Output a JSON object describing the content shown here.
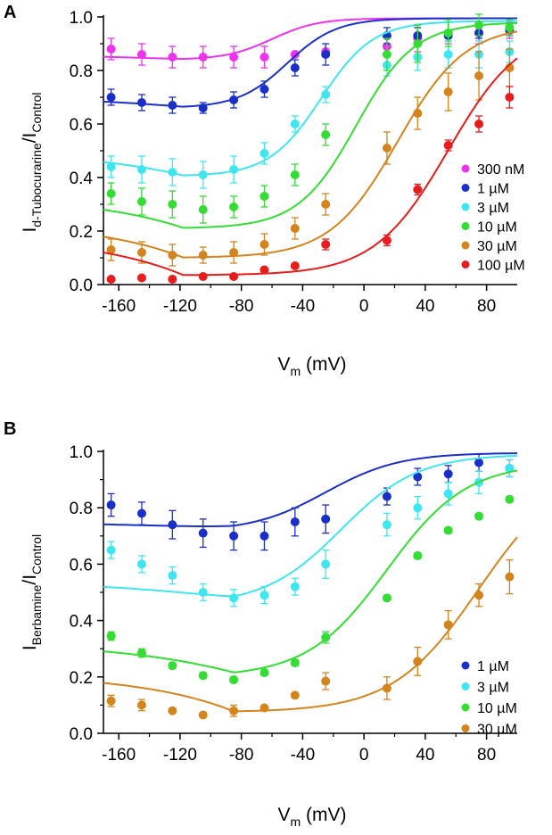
{
  "colors": {
    "300 nM": "#ee33ee",
    "1 µM": "#1a2fc8",
    "3 µM": "#3fe6f0",
    "10 µM": "#33dd33",
    "30 µM": "#d4841c",
    "100 µM": "#e81c1c"
  },
  "chart_data": [
    {
      "type": "scatter",
      "panel": "A",
      "ylabel_main": "I",
      "ylabel_sub1": "d-Tubocurarine",
      "ylabel_mid": "/I",
      "ylabel_sub2": "Control",
      "xlabel_main": "V",
      "xlabel_sub": "m",
      "xlabel_unit": " (mV)",
      "xlim": [
        -170,
        100
      ],
      "ylim": [
        0,
        1
      ],
      "xticks": [
        -160,
        -120,
        -80,
        -40,
        0,
        40,
        80
      ],
      "xtick_labels": [
        "-160",
        "-120",
        "-80",
        "-40",
        "0",
        "40",
        "80"
      ],
      "yticks": [
        0,
        0.2,
        0.4,
        0.6,
        0.8,
        1.0
      ],
      "ytick_labels": [
        "0.0",
        "0.2",
        "0.4",
        "0.6",
        "0.8",
        "1.0"
      ],
      "legend_position": "bottom-right",
      "series": [
        {
          "name": "300 nM",
          "color_key": "300 nM",
          "x": [
            -165,
            -145,
            -125,
            -105,
            -85,
            -65,
            -45,
            -25,
            15,
            35,
            55,
            75,
            95
          ],
          "y": [
            0.88,
            0.86,
            0.85,
            0.85,
            0.85,
            0.85,
            0.86,
            0.87,
            0.89,
            0.92,
            0.94,
            0.94,
            0.95
          ],
          "err": [
            0.04,
            0.04,
            0.04,
            0.04,
            0.04,
            0.04,
            0.0,
            0.0,
            0.0,
            0.05,
            0.04,
            0.04,
            0.03
          ],
          "fit": {
            "min": 0.84,
            "max": 0.995,
            "v_center": -118,
            "width": 55,
            "v_half": -60,
            "slope": 15
          }
        },
        {
          "name": "1 µM",
          "color_key": "1 µM",
          "x": [
            -165,
            -145,
            -125,
            -105,
            -85,
            -65,
            -45,
            -25,
            15,
            35,
            55,
            75,
            95
          ],
          "y": [
            0.7,
            0.68,
            0.67,
            0.66,
            0.69,
            0.73,
            0.81,
            0.86,
            0.93,
            0.93,
            0.93,
            0.94,
            0.95
          ],
          "err": [
            0.03,
            0.03,
            0.03,
            0.02,
            0.03,
            0.03,
            0.03,
            0.04,
            0.03,
            0.03,
            0.02,
            0.02,
            0.02
          ],
          "fit": {
            "min": 0.66,
            "max": 0.995,
            "v_center": -118,
            "width": 55,
            "v_half": -50,
            "slope": 16
          }
        },
        {
          "name": "3 µM",
          "color_key": "3 µM",
          "x": [
            -165,
            -145,
            -125,
            -105,
            -85,
            -65,
            -45,
            -25,
            15,
            35,
            55,
            75,
            95
          ],
          "y": [
            0.44,
            0.43,
            0.42,
            0.41,
            0.43,
            0.49,
            0.6,
            0.71,
            0.82,
            0.85,
            0.86,
            0.86,
            0.87
          ],
          "err": [
            0.04,
            0.05,
            0.05,
            0.05,
            0.05,
            0.04,
            0.03,
            0.03,
            0.04,
            0.05,
            0.05,
            0.05,
            0.04
          ],
          "fit": {
            "min": 0.405,
            "max": 0.985,
            "v_center": -118,
            "width": 55,
            "v_half": -28,
            "slope": 17
          }
        },
        {
          "name": "10 µM",
          "color_key": "10 µM",
          "x": [
            -165,
            -145,
            -125,
            -105,
            -85,
            -65,
            -45,
            -25,
            15,
            35,
            55,
            75,
            95
          ],
          "y": [
            0.34,
            0.31,
            0.3,
            0.28,
            0.29,
            0.33,
            0.41,
            0.56,
            0.86,
            0.9,
            0.94,
            0.97,
            0.96
          ],
          "err": [
            0.04,
            0.05,
            0.05,
            0.05,
            0.04,
            0.04,
            0.04,
            0.04,
            0.06,
            0.07,
            0.05,
            0.04,
            0.03
          ],
          "fit": {
            "min": 0.21,
            "max": 0.98,
            "v_center": -118,
            "width": 55,
            "v_half": -5,
            "slope": 19
          }
        },
        {
          "name": "30 µM",
          "color_key": "30 µM",
          "x": [
            -165,
            -145,
            -125,
            -105,
            -85,
            -65,
            -45,
            -25,
            15,
            35,
            55,
            75,
            95
          ],
          "y": [
            0.13,
            0.12,
            0.11,
            0.11,
            0.12,
            0.15,
            0.21,
            0.3,
            0.51,
            0.64,
            0.72,
            0.78,
            0.81
          ],
          "err": [
            0.04,
            0.04,
            0.04,
            0.03,
            0.04,
            0.04,
            0.04,
            0.04,
            0.06,
            0.06,
            0.07,
            0.09,
            0.07
          ],
          "fit": {
            "min": 0.1,
            "max": 0.97,
            "v_center": -118,
            "width": 55,
            "v_half": 22,
            "slope": 22
          }
        },
        {
          "name": "100 µM",
          "color_key": "100 µM",
          "x": [
            -165,
            -145,
            -125,
            -105,
            -85,
            -65,
            -45,
            -25,
            15,
            35,
            55,
            75,
            95
          ],
          "y": [
            0.02,
            0.025,
            0.02,
            0.03,
            0.03,
            0.055,
            0.07,
            0.15,
            0.165,
            0.355,
            0.52,
            0.6,
            0.7
          ],
          "err": [
            0.0,
            0.0,
            0.0,
            0.0,
            0.0,
            0.0,
            0.0,
            0.02,
            0.02,
            0.02,
            0.02,
            0.03,
            0.04
          ],
          "fit": {
            "min": 0.035,
            "max": 0.97,
            "v_center": -118,
            "width": 55,
            "v_half": 55,
            "slope": 24
          }
        }
      ]
    },
    {
      "type": "scatter",
      "panel": "B",
      "ylabel_main": "I",
      "ylabel_sub1": "Berbamine",
      "ylabel_mid": "/I",
      "ylabel_sub2": "Control",
      "xlabel_main": "V",
      "xlabel_sub": "m",
      "xlabel_unit": " (mV)",
      "xlim": [
        -170,
        100
      ],
      "ylim": [
        0,
        1
      ],
      "xticks": [
        -160,
        -120,
        -80,
        -40,
        0,
        40,
        80
      ],
      "xtick_labels": [
        "-160",
        "-120",
        "-80",
        "-40",
        "0",
        "40",
        "80"
      ],
      "yticks": [
        0,
        0.2,
        0.4,
        0.6,
        0.8,
        1.0
      ],
      "ytick_labels": [
        "0.0",
        "0.2",
        "0.4",
        "0.6",
        "0.8",
        "1.0"
      ],
      "legend_position": "bottom-right",
      "series": [
        {
          "name": "1 µM",
          "color_key": "1 µM",
          "x": [
            -165,
            -145,
            -125,
            -105,
            -85,
            -65,
            -45,
            -25,
            15,
            35,
            55,
            75,
            95
          ],
          "y": [
            0.81,
            0.78,
            0.74,
            0.71,
            0.7,
            0.7,
            0.75,
            0.76,
            0.84,
            0.91,
            0.92,
            0.96,
            0.94
          ],
          "err": [
            0.04,
            0.04,
            0.05,
            0.05,
            0.05,
            0.05,
            0.05,
            0.05,
            0.03,
            0.03,
            0.03,
            0.03,
            0.03
          ],
          "fit": {
            "min": 0.715,
            "max": 0.995,
            "v_center": -85,
            "width": 55,
            "v_half": -25,
            "slope": 24
          }
        },
        {
          "name": "3 µM",
          "color_key": "3 µM",
          "x": [
            -165,
            -145,
            -125,
            -105,
            -85,
            -65,
            -45,
            -25,
            15,
            35,
            55,
            75,
            95
          ],
          "y": [
            0.65,
            0.6,
            0.56,
            0.5,
            0.48,
            0.49,
            0.52,
            0.6,
            0.74,
            0.8,
            0.85,
            0.89,
            0.94
          ],
          "err": [
            0.03,
            0.03,
            0.03,
            0.03,
            0.03,
            0.03,
            0.03,
            0.05,
            0.04,
            0.04,
            0.04,
            0.04,
            0.03
          ],
          "fit": {
            "min": 0.455,
            "max": 0.99,
            "v_center": -85,
            "width": 55,
            "v_half": -15,
            "slope": 25
          }
        },
        {
          "name": "10 µM",
          "color_key": "10 µM",
          "x": [
            -165,
            -145,
            -125,
            -105,
            -85,
            -65,
            -45,
            -25,
            15,
            35,
            55,
            75,
            95
          ],
          "y": [
            0.345,
            0.285,
            0.24,
            0.205,
            0.19,
            0.215,
            0.25,
            0.34,
            0.48,
            0.63,
            0.72,
            0.77,
            0.83
          ],
          "err": [
            0.015,
            0.015,
            0.01,
            0.01,
            0.01,
            0.01,
            0.01,
            0.02,
            0.01,
            0.01,
            0.01,
            0.01,
            0.01
          ],
          "fit": {
            "min": 0.2,
            "max": 0.96,
            "v_center": -85,
            "width": 55,
            "v_half": 15,
            "slope": 26
          }
        },
        {
          "name": "30 µM",
          "color_key": "30 µM",
          "x": [
            -165,
            -145,
            -125,
            -105,
            -85,
            -65,
            -45,
            -25,
            15,
            35,
            55,
            75,
            95
          ],
          "y": [
            0.115,
            0.1,
            0.08,
            0.065,
            0.08,
            0.09,
            0.135,
            0.185,
            0.16,
            0.255,
            0.385,
            0.49,
            0.555
          ],
          "err": [
            0.02,
            0.02,
            0.0,
            0.0,
            0.02,
            0.0,
            0.0,
            0.03,
            0.04,
            0.05,
            0.05,
            0.04,
            0.06
          ],
          "fit": {
            "min": 0.075,
            "max": 0.95,
            "v_center": -85,
            "width": 55,
            "v_half": 75,
            "slope": 28
          }
        }
      ]
    }
  ]
}
